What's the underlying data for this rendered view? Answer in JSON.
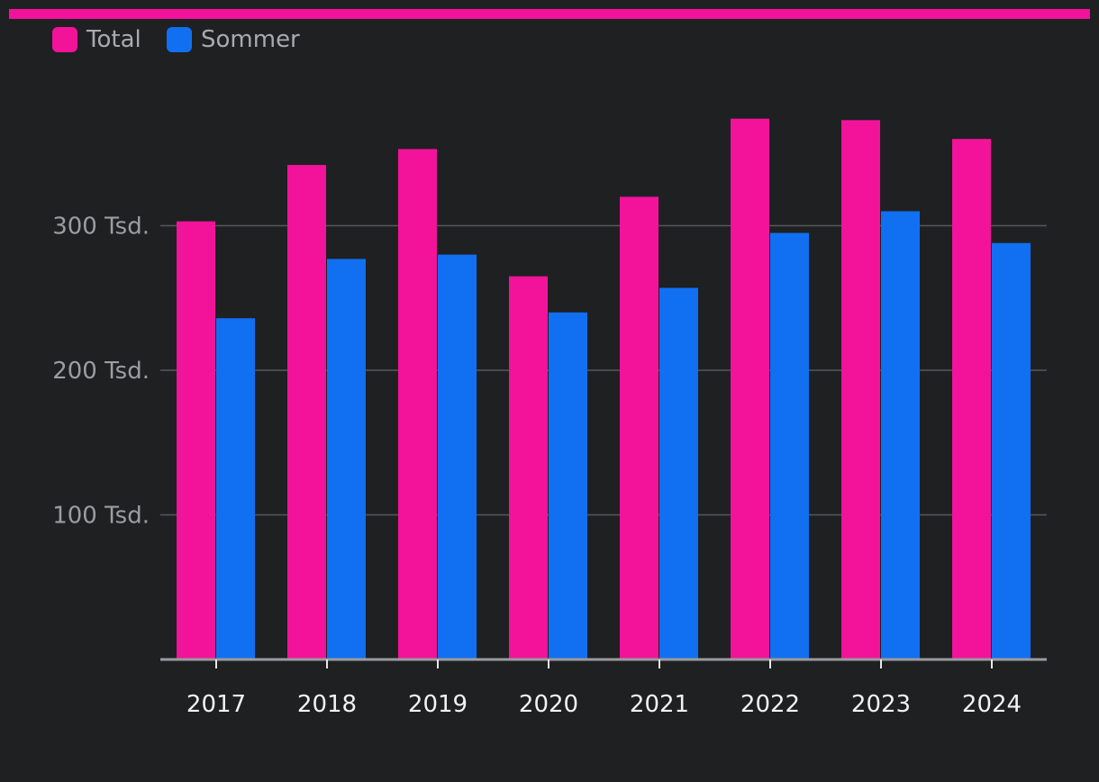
{
  "chart_data": {
    "type": "bar",
    "categories": [
      "2017",
      "2018",
      "2019",
      "2020",
      "2021",
      "2022",
      "2023",
      "2024"
    ],
    "series": [
      {
        "name": "Total",
        "color": "#f2139a",
        "values": [
          303,
          342,
          353,
          265,
          320,
          374,
          373,
          360
        ]
      },
      {
        "name": "Sommer",
        "color": "#116ff2",
        "values": [
          236,
          277,
          280,
          240,
          257,
          295,
          310,
          288
        ]
      }
    ],
    "yticks": [
      {
        "value": 100,
        "label": "100 Tsd."
      },
      {
        "value": 200,
        "label": "200 Tsd."
      },
      {
        "value": 300,
        "label": "300 Tsd."
      }
    ],
    "ylim": [
      0,
      400
    ],
    "title": "",
    "xlabel": "",
    "ylabel": "",
    "legend_position": "top-left",
    "grid": true
  },
  "accent_color": "#f2139a"
}
